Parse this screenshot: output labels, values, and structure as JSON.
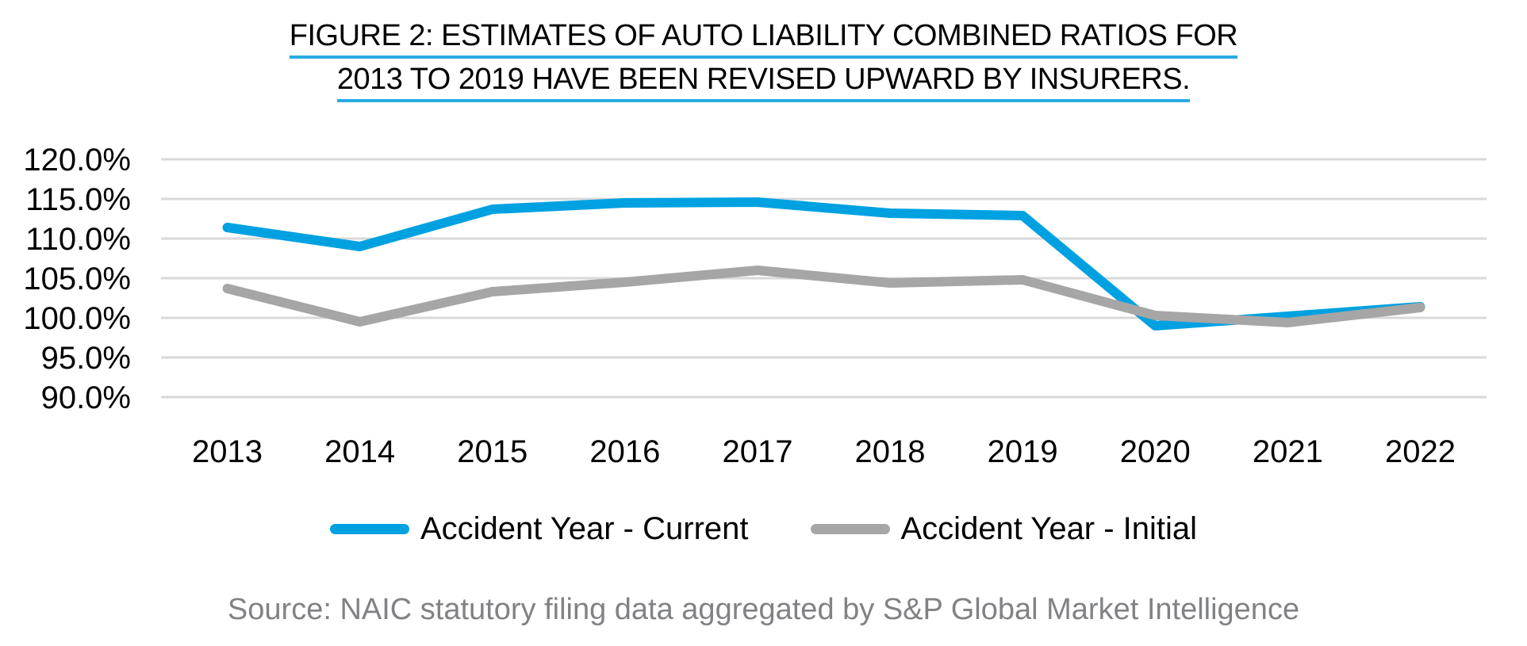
{
  "title": {
    "line1": "FIGURE 2: ESTIMATES OF AUTO LIABILITY COMBINED RATIOS FOR",
    "line2": "2013 TO 2019 HAVE BEEN REVISED UPWARD BY INSURERS."
  },
  "source": "Source: NAIC statutory filing data aggregated by S&P Global Market Intelligence",
  "colors": {
    "accent_blue": "#00A1E1",
    "series_gray": "#A6A6A6",
    "title_underline": "#29ABE2",
    "gridline": "#D9D9D9",
    "source_text": "#808285",
    "axis_text": "#000000"
  },
  "legend": {
    "items": [
      {
        "label": "Accident Year - Current",
        "color": "#00A1E1"
      },
      {
        "label": "Accident Year - Initial",
        "color": "#A6A6A6"
      }
    ]
  },
  "chart_data": {
    "type": "line",
    "title": "FIGURE 2: ESTIMATES OF AUTO LIABILITY COMBINED RATIOS FOR 2013 TO 2019 HAVE BEEN REVISED UPWARD BY INSURERS.",
    "categories": [
      "2013",
      "2014",
      "2015",
      "2016",
      "2017",
      "2018",
      "2019",
      "2020",
      "2021",
      "2022"
    ],
    "series": [
      {
        "name": "Accident Year - Current",
        "color": "#00A1E1",
        "values": [
          111.4,
          109.0,
          113.7,
          114.5,
          114.6,
          113.2,
          112.9,
          99.0,
          100.2,
          101.4
        ]
      },
      {
        "name": "Accident Year - Initial",
        "color": "#A6A6A6",
        "values": [
          103.7,
          99.5,
          103.3,
          104.5,
          106.0,
          104.4,
          104.8,
          100.3,
          99.4,
          101.3
        ]
      }
    ],
    "xlabel": "",
    "ylabel": "",
    "ylim": [
      90,
      120
    ],
    "ytick_step": 5,
    "ytick_labels": [
      "90.0%",
      "95.0%",
      "100.0%",
      "105.0%",
      "110.0%",
      "115.0%",
      "120.0%"
    ],
    "grid": "horizontal",
    "legend_position": "bottom"
  }
}
